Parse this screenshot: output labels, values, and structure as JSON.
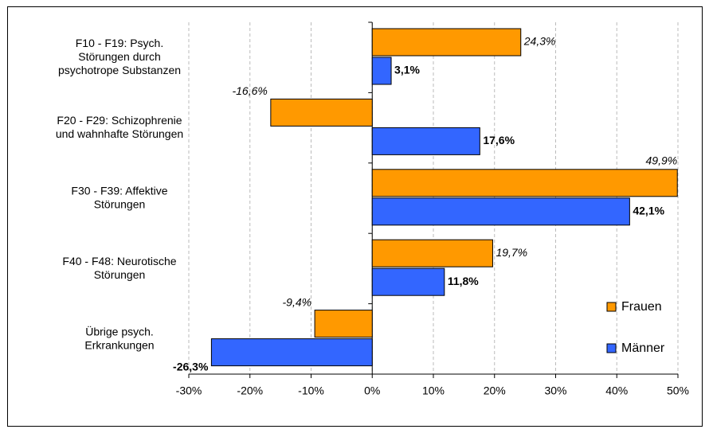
{
  "chart_data": {
    "type": "barh",
    "categories": [
      "F10 - F19: Psych.\nStörungen durch\npsychotrope Substanzen",
      "F20 - F29: Schizophrenie\nund wahnhafte Störungen",
      "F30 - F39: Affektive\nStörungen",
      "F40 - F48: Neurotische\nStörungen",
      "Übrige psych.\nErkrankungen"
    ],
    "series": [
      {
        "name": "Frauen",
        "color": "#ff9900",
        "values": [
          24.3,
          -16.6,
          49.9,
          19.7,
          -9.4
        ],
        "value_labels": [
          "24,3%",
          "-16,6%",
          "49,9%",
          "19,7%",
          "-9,4%"
        ]
      },
      {
        "name": "Männer",
        "color": "#3366ff",
        "values": [
          3.1,
          17.6,
          42.1,
          11.8,
          -26.3
        ],
        "value_labels": [
          "3,1%",
          "17,6%",
          "42,1%",
          "11,8%",
          "-26,3%"
        ]
      }
    ],
    "xlim": [
      -30,
      50
    ],
    "xticks": [
      {
        "value": -30,
        "label": "-30%"
      },
      {
        "value": -20,
        "label": "-20%"
      },
      {
        "value": -10,
        "label": "-10%"
      },
      {
        "value": 0,
        "label": "0%"
      },
      {
        "value": 10,
        "label": "10%"
      },
      {
        "value": 20,
        "label": "20%"
      },
      {
        "value": 30,
        "label": "30%"
      },
      {
        "value": 40,
        "label": "40%"
      },
      {
        "value": 50,
        "label": "50%"
      }
    ],
    "grid": true,
    "legend": "right"
  }
}
